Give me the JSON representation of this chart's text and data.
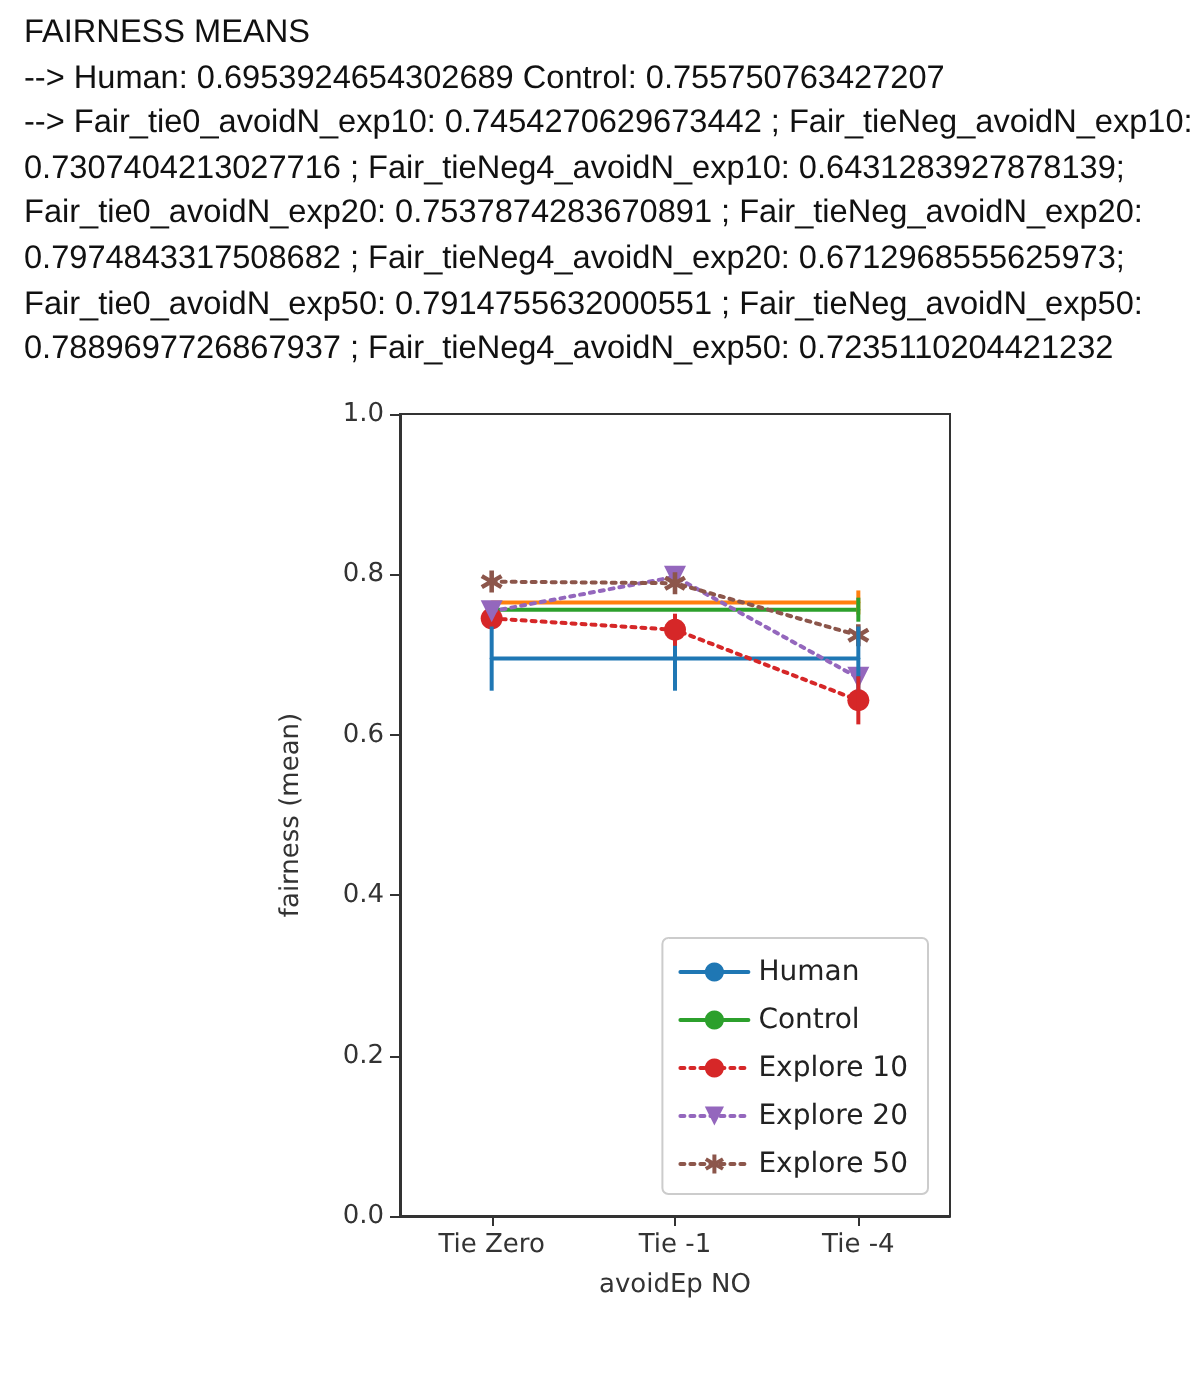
{
  "chart_data": {
    "type": "line",
    "title": "FAIRNESS MEANS",
    "annotations": [
      "--> Human: 0.6953924654302689 Control: 0.755750763427207",
      "--> Fair_tie0_avoidN_exp10: 0.7454270629673442 ; Fair_tieNeg_avoidN_exp10: 0.7307404213027716 ; Fair_tieNeg4_avoidN_exp10: 0.6431283927878139; Fair_tie0_avoidN_exp20: 0.7537874283670891 ; Fair_tieNeg_avoidN_exp20: 0.7974843317508682 ; Fair_tieNeg4_avoidN_exp20: 0.6712968555625973; Fair_tie0_avoidN_exp50: 0.7914755632000551 ; Fair_tieNeg_avoidN_exp50: 0.7889697726867937 ; Fair_tieNeg4_avoidN_exp50: 0.7235110204421232"
    ],
    "categories": [
      "Tie Zero",
      "Tie -1",
      "Tie -4"
    ],
    "xlabel": "avoidEp NO",
    "ylabel": "fairness (mean)",
    "ylim": [
      0,
      1.0
    ],
    "yticks": [
      {
        "value": 0,
        "label": "0.0"
      },
      0.2,
      0.4,
      0.6,
      0.8,
      {
        "value": 1,
        "label": "1.0"
      }
    ],
    "legend": "bottom right",
    "grid": false,
    "series": [
      {
        "name": "Human",
        "color": "#1f77b4",
        "values": [
          0.695,
          0.695,
          0.695
        ],
        "errors": [
          0.04,
          0.04,
          0.04
        ],
        "marker": "none",
        "line_style": "solid"
      },
      {
        "color": "#ff7f0e",
        "values": [
          0.765,
          0.765,
          0.765
        ],
        "errors": [
          null,
          null,
          0.015
        ],
        "marker": "none",
        "line_style": "solid"
      },
      {
        "name": "Control",
        "color": "#2ca02c",
        "values": [
          0.756,
          0.756,
          0.756
        ],
        "errors": [
          null,
          null,
          0.015
        ],
        "marker": "none",
        "line_style": "solid"
      },
      {
        "name": "Explore 10",
        "color": "#d62728",
        "values": [
          0.745,
          0.731,
          0.643
        ],
        "errors": [
          null,
          0.02,
          0.03
        ],
        "marker": "circle",
        "line_style": "dotted"
      },
      {
        "name": "Explore 20",
        "color": "#9467bd",
        "values": [
          0.754,
          0.797,
          0.671
        ],
        "marker": "triangle",
        "line_style": "dotted"
      },
      {
        "name": "Explore 50",
        "color": "#8c564b",
        "values": [
          0.791,
          0.789,
          0.724
        ],
        "marker": "star",
        "line_style": "dotted"
      }
    ]
  }
}
